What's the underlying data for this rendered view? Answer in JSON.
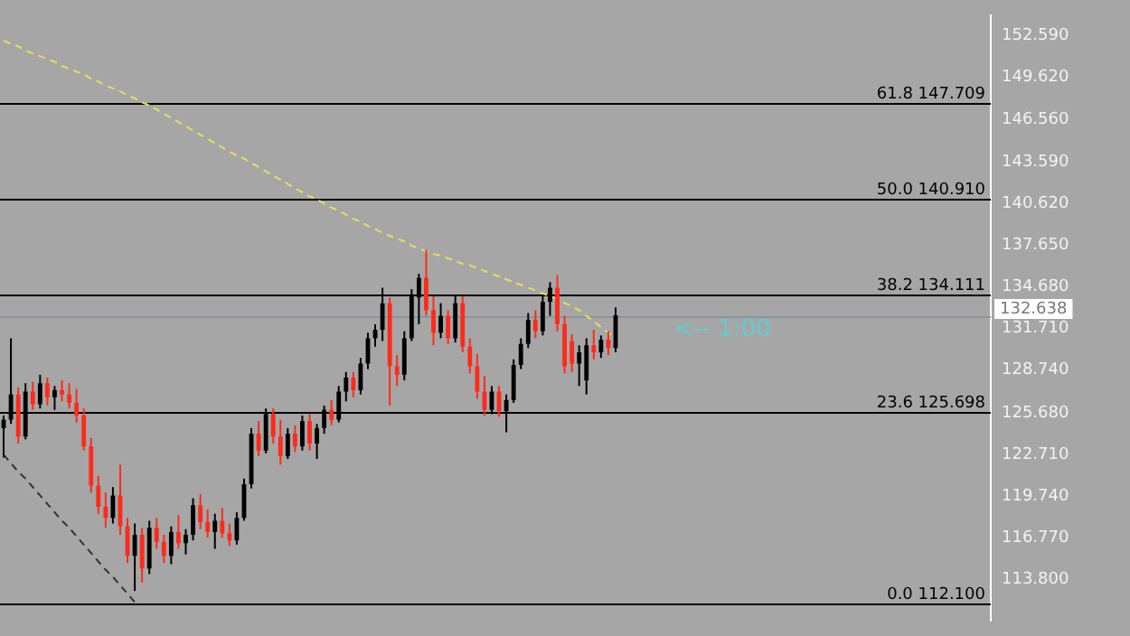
{
  "chart_data": {
    "type": "candlestick",
    "categories": [
      null,
      null,
      null,
      null,
      null,
      null,
      null,
      null,
      null,
      null,
      null,
      null,
      null,
      null,
      null,
      null,
      null,
      null,
      null,
      null,
      null,
      null,
      null,
      null,
      null,
      null,
      null,
      null,
      null,
      null,
      null,
      null,
      null,
      null,
      null,
      null,
      null,
      null,
      null,
      null,
      null,
      null,
      null,
      null,
      null,
      null,
      null,
      null,
      null,
      null,
      null,
      null,
      null,
      null,
      null,
      null,
      null,
      null,
      null,
      null,
      null,
      null,
      null,
      null,
      null,
      null,
      null,
      null,
      null,
      null,
      null,
      null,
      null,
      null,
      null,
      null,
      null,
      null,
      null,
      null,
      null,
      null,
      null,
      null,
      null,
      null,
      null,
      null,
      null,
      null,
      null,
      null,
      null,
      null,
      null,
      null,
      null,
      null,
      null,
      null,
      null,
      null,
      null,
      null,
      null,
      null,
      null,
      null,
      null,
      null,
      null,
      null,
      null,
      null,
      null,
      null,
      null,
      null,
      null,
      null,
      null,
      null,
      null,
      null,
      null,
      null,
      null,
      null,
      null,
      null,
      null,
      null,
      null,
      null,
      null,
      null
    ],
    "ohlc": [
      [
        124.6,
        125.5,
        122.5,
        125.2
      ],
      [
        125.2,
        131.0,
        124.9,
        127.0
      ],
      [
        127.0,
        127.5,
        123.5,
        124.0
      ],
      [
        124.0,
        127.8,
        123.8,
        127.2
      ],
      [
        127.2,
        127.9,
        125.9,
        126.3
      ],
      [
        126.3,
        128.4,
        126.0,
        127.8
      ],
      [
        127.8,
        128.2,
        126.2,
        126.8
      ],
      [
        126.8,
        127.6,
        125.9,
        127.3
      ],
      [
        127.3,
        128.0,
        126.5,
        127.0
      ],
      [
        127.0,
        127.8,
        126.0,
        126.4
      ],
      [
        126.4,
        127.4,
        125.0,
        125.5
      ],
      [
        125.5,
        126.0,
        123.0,
        123.3
      ],
      [
        123.3,
        123.9,
        120.0,
        120.5
      ],
      [
        120.5,
        121.2,
        118.5,
        119.0
      ],
      [
        119.0,
        120.0,
        117.5,
        118.2
      ],
      [
        118.2,
        120.4,
        117.8,
        119.8
      ],
      [
        119.8,
        122.0,
        117.0,
        117.6
      ],
      [
        117.6,
        118.2,
        115.0,
        115.5
      ],
      [
        115.5,
        117.8,
        113.0,
        117.0
      ],
      [
        117.0,
        117.5,
        113.6,
        114.6
      ],
      [
        114.6,
        118.0,
        114.2,
        117.5
      ],
      [
        117.5,
        118.2,
        116.0,
        116.5
      ],
      [
        116.5,
        117.0,
        115.0,
        115.5
      ],
      [
        115.5,
        117.6,
        114.9,
        117.2
      ],
      [
        117.2,
        118.4,
        116.0,
        116.4
      ],
      [
        116.4,
        117.4,
        115.6,
        117.0
      ],
      [
        117.0,
        119.6,
        116.6,
        119.1
      ],
      [
        119.1,
        119.9,
        117.4,
        117.9
      ],
      [
        117.9,
        118.8,
        116.8,
        117.2
      ],
      [
        117.2,
        118.5,
        116.0,
        118.0
      ],
      [
        118.0,
        118.9,
        116.8,
        117.1
      ],
      [
        117.1,
        117.8,
        116.2,
        116.6
      ],
      [
        116.6,
        118.6,
        116.3,
        118.2
      ],
      [
        118.2,
        121.0,
        118.0,
        120.6
      ],
      [
        120.6,
        124.6,
        120.3,
        124.2
      ],
      [
        124.2,
        125.1,
        122.6,
        123.0
      ],
      [
        123.0,
        126.0,
        122.8,
        125.6
      ],
      [
        125.6,
        126.0,
        123.5,
        124.0
      ],
      [
        124.0,
        125.2,
        122.0,
        122.6
      ],
      [
        122.6,
        124.6,
        122.4,
        124.2
      ],
      [
        124.2,
        124.8,
        122.9,
        123.3
      ],
      [
        123.3,
        125.5,
        123.0,
        125.1
      ],
      [
        125.1,
        125.6,
        123.0,
        123.5
      ],
      [
        123.5,
        124.9,
        122.4,
        124.6
      ],
      [
        124.6,
        126.2,
        124.2,
        125.9
      ],
      [
        125.9,
        126.6,
        124.8,
        125.2
      ],
      [
        125.2,
        127.6,
        125.0,
        127.2
      ],
      [
        127.2,
        128.6,
        126.5,
        128.2
      ],
      [
        128.2,
        128.6,
        126.8,
        127.3
      ],
      [
        127.3,
        129.6,
        127.0,
        129.2
      ],
      [
        129.2,
        131.4,
        128.8,
        131.0
      ],
      [
        131.0,
        132.0,
        130.4,
        131.6
      ],
      [
        131.6,
        134.6,
        130.8,
        133.5
      ],
      [
        133.5,
        133.9,
        126.2,
        129.0
      ],
      [
        129.0,
        129.8,
        127.6,
        128.4
      ],
      [
        128.4,
        131.5,
        128.0,
        131.0
      ],
      [
        131.0,
        134.5,
        130.8,
        134.0
      ],
      [
        133.9,
        135.6,
        132.0,
        135.3
      ],
      [
        135.3,
        137.3,
        132.6,
        133.0
      ],
      [
        133.0,
        134.0,
        130.5,
        131.4
      ],
      [
        131.4,
        133.5,
        131.0,
        132.6
      ],
      [
        132.6,
        133.0,
        130.6,
        131.0
      ],
      [
        131.0,
        134.0,
        130.7,
        133.5
      ],
      [
        133.5,
        134.0,
        130.0,
        130.4
      ],
      [
        130.4,
        131.0,
        128.5,
        129.0
      ],
      [
        129.0,
        129.9,
        126.7,
        127.2
      ],
      [
        127.2,
        128.3,
        125.5,
        125.9
      ],
      [
        125.9,
        127.6,
        125.6,
        127.2
      ],
      [
        127.2,
        127.6,
        125.4,
        125.8
      ],
      [
        125.8,
        127.0,
        124.3,
        126.6
      ],
      [
        126.6,
        129.5,
        126.4,
        129.1
      ],
      [
        129.1,
        131.0,
        128.8,
        130.6
      ],
      [
        130.6,
        132.8,
        130.3,
        132.3
      ],
      [
        132.3,
        133.0,
        131.0,
        131.5
      ],
      [
        131.5,
        134.0,
        131.2,
        133.6
      ],
      [
        133.6,
        135.0,
        132.6,
        134.6
      ],
      [
        134.6,
        135.5,
        131.5,
        132.0
      ],
      [
        132.0,
        132.6,
        128.5,
        129.0
      ],
      [
        130.8,
        131.3,
        128.6,
        129.2
      ],
      [
        129.2,
        130.5,
        127.6,
        130.0
      ],
      [
        128.0,
        131.0,
        127.0,
        130.5
      ],
      [
        130.5,
        131.6,
        129.5,
        130.0
      ],
      [
        130.0,
        131.2,
        129.6,
        130.9
      ],
      [
        130.9,
        131.5,
        129.8,
        130.3
      ],
      [
        130.3,
        133.2,
        130.0,
        132.638
      ],
      null,
      null,
      null,
      null,
      null,
      null,
      null,
      null,
      null,
      null,
      null,
      null,
      null,
      null,
      null,
      null,
      null,
      null,
      null,
      null,
      null,
      null,
      null,
      null,
      null,
      null,
      null,
      null,
      null,
      null,
      null,
      null,
      null,
      null,
      null,
      null,
      null,
      null,
      null,
      null,
      null,
      null,
      null,
      null,
      null,
      null,
      null,
      null,
      null,
      null,
      null
    ],
    "colors": [
      "#000000",
      "#000000",
      "#ff2a1a",
      "#000000",
      "#ff2a1a",
      "#000000",
      "#ff2a1a",
      "#000000",
      "#ff2a1a",
      "#ff2a1a",
      "#ff2a1a",
      "#ff2a1a",
      "#ff2a1a",
      "#ff2a1a",
      "#ff2a1a",
      "#000000",
      "#ff2a1a",
      "#ff2a1a",
      "#000000",
      "#ff2a1a",
      "#000000",
      "#ff2a1a",
      "#ff2a1a",
      "#000000",
      "#ff2a1a",
      "#000000",
      "#000000",
      "#ff2a1a",
      "#ff2a1a",
      "#000000",
      "#ff2a1a",
      "#ff2a1a",
      "#000000",
      "#000000",
      "#000000",
      "#ff2a1a",
      "#000000",
      "#ff2a1a",
      "#ff2a1a",
      "#000000",
      "#ff2a1a",
      "#000000",
      "#ff2a1a",
      "#000000",
      "#000000",
      "#ff2a1a",
      "#000000",
      "#000000",
      "#ff2a1a",
      "#000000",
      "#000000",
      "#000000",
      "#000000",
      "#ff2a1a",
      "#ff2a1a",
      "#000000",
      "#000000",
      "#000000",
      "#ff2a1a",
      "#ff2a1a",
      "#000000",
      "#ff2a1a",
      "#000000",
      "#ff2a1a",
      "#ff2a1a",
      "#ff2a1a",
      "#ff2a1a",
      "#000000",
      "#ff2a1a",
      "#000000",
      "#000000",
      "#000000",
      "#000000",
      "#ff2a1a",
      "#000000",
      "#000000",
      "#ff2a1a",
      "#ff2a1a",
      "#ff2a1a",
      "#000000",
      "#000000",
      "#ff2a1a",
      "#000000",
      "#ff2a1a",
      "#000000",
      null,
      null,
      null,
      null,
      null,
      null,
      null,
      null,
      null,
      null,
      null,
      null,
      null,
      null,
      null,
      null,
      null,
      null,
      null,
      null,
      null,
      null,
      null,
      null,
      null,
      null,
      null,
      null,
      null,
      null,
      null,
      null,
      null,
      null,
      null,
      null,
      null,
      null,
      null,
      null,
      null,
      null,
      null,
      null,
      null,
      null,
      null,
      null,
      null,
      null,
      null
    ],
    "ylim": [
      110.87,
      154.02
    ],
    "yticks": [
      {
        "value": 113.8,
        "label": "113.800"
      },
      {
        "value": 116.77,
        "label": "116.770"
      },
      {
        "value": 119.74,
        "label": "119.740"
      },
      {
        "value": 122.71,
        "label": "122.710"
      },
      {
        "value": 125.68,
        "label": "125.680"
      },
      {
        "value": 128.74,
        "label": "128.740"
      },
      {
        "value": 131.71,
        "label": "131.710"
      },
      {
        "value": 134.68,
        "label": "134.680"
      },
      {
        "value": 137.65,
        "label": "137.650"
      },
      {
        "value": 140.62,
        "label": "140.620"
      },
      {
        "value": 143.59,
        "label": "143.590"
      },
      {
        "value": 146.56,
        "label": "146.560"
      },
      {
        "value": 149.62,
        "label": "149.620"
      },
      {
        "value": 152.59,
        "label": "152.590"
      }
    ],
    "tick_labels": "y",
    "grid": false,
    "legend": false,
    "series": [
      {
        "type": "line",
        "color": "#e6df5c",
        "line_style": "dashed",
        "values": [
          152.2,
          152.0,
          151.8,
          151.5,
          151.3,
          151.1,
          150.9,
          150.7,
          150.4,
          150.2,
          150.0,
          149.8,
          149.5,
          149.3,
          149.0,
          148.8,
          148.6,
          148.3,
          148.1,
          147.8,
          147.6,
          147.3,
          147.0,
          146.7,
          146.4,
          146.1,
          145.8,
          145.5,
          145.2,
          144.9,
          144.6,
          144.3,
          144.0,
          143.8,
          143.5,
          143.2,
          142.9,
          142.6,
          142.3,
          142.0,
          141.7,
          141.4,
          141.1,
          140.9,
          140.6,
          140.3,
          140.1,
          139.8,
          139.5,
          139.3,
          139.0,
          138.8,
          138.5,
          138.3,
          138.1,
          137.9,
          137.6,
          137.4,
          137.2,
          137.0,
          136.9,
          136.7,
          136.5,
          136.3,
          136.2,
          136.0,
          135.8,
          135.6,
          135.4,
          135.2,
          135.0,
          134.8,
          134.6,
          134.4,
          134.2,
          134.0,
          133.8,
          133.5,
          133.3,
          133.0,
          132.6,
          132.2,
          131.8,
          131.4,
          131.0,
          null,
          null,
          null,
          null,
          null,
          null,
          null,
          null,
          null,
          null,
          null,
          null,
          null,
          null,
          null,
          null,
          null,
          null,
          null,
          null,
          null,
          null,
          null,
          null,
          null,
          null,
          null,
          null,
          null,
          null,
          null,
          null,
          null,
          null,
          null,
          null,
          null,
          null,
          null,
          null,
          null,
          null,
          null,
          null,
          null,
          null,
          null,
          null,
          null,
          null,
          null
        ]
      },
      {
        "type": "line",
        "color": "#333333",
        "line_style": "dashed",
        "values": [
          122.7,
          122.1,
          121.5,
          121.0,
          120.4,
          119.8,
          119.2,
          118.6,
          118.0,
          117.5,
          116.9,
          116.3,
          115.7,
          115.1,
          114.5,
          114.0,
          113.4,
          112.8,
          112.2,
          null,
          null,
          null,
          null,
          null,
          null,
          null,
          null,
          null,
          null,
          null,
          null,
          null,
          null,
          null,
          null,
          null,
          null,
          null,
          null,
          null,
          null,
          null,
          null,
          null,
          null,
          null,
          null,
          null,
          null,
          null,
          null,
          null,
          null,
          null,
          null,
          null,
          null,
          null,
          null,
          null,
          null,
          null,
          null,
          null,
          null,
          null,
          null,
          null,
          null,
          null,
          null,
          null,
          null,
          null,
          null,
          null,
          null,
          null,
          null,
          null,
          null,
          null,
          null,
          null,
          null,
          null,
          null,
          null,
          null,
          null,
          null,
          null,
          null,
          null,
          null,
          null,
          null,
          null,
          null,
          null,
          null,
          null,
          null,
          null,
          null,
          null,
          null,
          null,
          null,
          null,
          null,
          null,
          null,
          null,
          null,
          null,
          null,
          null,
          null,
          null,
          null,
          null,
          null,
          null,
          null,
          null,
          null,
          null,
          null,
          null,
          null,
          null,
          null,
          null,
          null,
          null
        ]
      }
    ],
    "ref_lines": [
      {
        "axis": "y",
        "value": 147.709,
        "label": "61.8 147.709"
      },
      {
        "axis": "y",
        "value": 140.91,
        "label": "50.0 140.910"
      },
      {
        "axis": "y",
        "value": 134.111,
        "label": "38.2 134.111"
      },
      {
        "axis": "y",
        "value": 125.698,
        "label": "23.6 125.698"
      },
      {
        "axis": "y",
        "value": 112.1,
        "label": "0.0 112.100"
      },
      {
        "axis": "y",
        "value": 132.638,
        "label": "132.638",
        "color": "#8896a0"
      }
    ],
    "annotations": [
      "<-- 1:00"
    ]
  }
}
